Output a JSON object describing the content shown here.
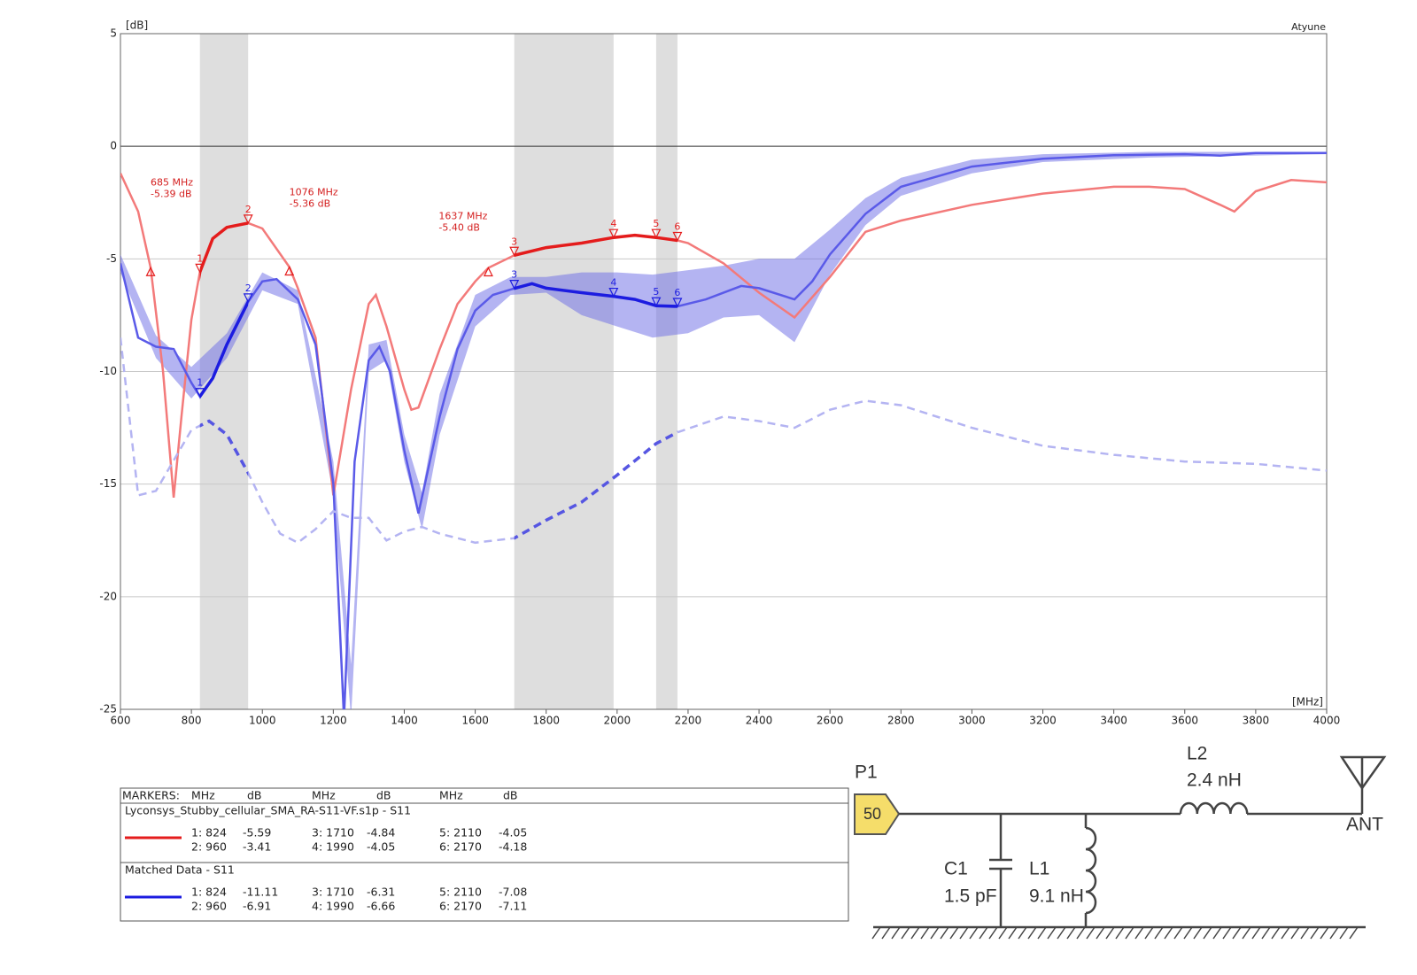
{
  "chart_data": {
    "type": "line",
    "y_unit": "[dB]",
    "x_unit": "[MHz]",
    "corner_label": "Atyune",
    "xlim": [
      600,
      4000
    ],
    "xticks": [
      600,
      800,
      1000,
      1200,
      1400,
      1600,
      1800,
      2000,
      2200,
      2400,
      2600,
      2800,
      3000,
      3200,
      3400,
      3600,
      3800,
      4000
    ],
    "ylim": [
      -25,
      5
    ],
    "yticks": [
      5,
      0,
      -5,
      -10,
      -15,
      -20,
      -25
    ],
    "grid": true,
    "shaded_bands": [
      [
        824,
        960
      ],
      [
        1710,
        1990
      ],
      [
        2110,
        2170
      ]
    ],
    "markers": {
      "labels": [
        "1",
        "2",
        "3",
        "4",
        "5",
        "6"
      ],
      "x": [
        824,
        960,
        1710,
        1990,
        2110,
        2170
      ]
    },
    "series": [
      {
        "color": "#f37a7a",
        "highlight_color": "#e41c1c",
        "dashed": false,
        "x": [
          600,
          650,
          685,
          720,
          750,
          772,
          800,
          824,
          860,
          900,
          960,
          1000,
          1076,
          1100,
          1150,
          1200,
          1250,
          1300,
          1320,
          1350,
          1400,
          1420,
          1440,
          1500,
          1550,
          1600,
          1637,
          1710,
          1800,
          1900,
          1990,
          2050,
          2110,
          2170,
          2200,
          2300,
          2400,
          2500,
          2600,
          2700,
          2800,
          3000,
          3200,
          3400,
          3500,
          3600,
          3700,
          3740,
          3800,
          3900,
          4000
        ],
        "values": [
          -1.2,
          -2.9,
          -5.39,
          -10,
          -15.6,
          -12,
          -7.7,
          -5.59,
          -4.1,
          -3.6,
          -3.41,
          -3.65,
          -5.36,
          -6.3,
          -8.5,
          -15.5,
          -10.8,
          -7,
          -6.6,
          -8,
          -10.8,
          -11.7,
          -11.6,
          -9,
          -7,
          -6,
          -5.4,
          -4.84,
          -4.5,
          -4.3,
          -4.05,
          -3.95,
          -4.05,
          -4.18,
          -4.3,
          -5.2,
          -6.5,
          -7.6,
          -5.8,
          -3.8,
          -3.3,
          -2.6,
          -2.1,
          -1.8,
          -1.8,
          -1.9,
          -2.6,
          -2.9,
          -2.0,
          -1.5,
          -1.6
        ],
        "marker_values": [
          -5.59,
          -3.41,
          -4.84,
          -4.05,
          -4.05,
          -4.18
        ]
      },
      {
        "color": "#5a5ae8",
        "highlight_color": "#1c1ce0",
        "dashed": false,
        "x": [
          600,
          650,
          700,
          750,
          800,
          824,
          860,
          900,
          960,
          1000,
          1040,
          1100,
          1150,
          1200,
          1230,
          1260,
          1300,
          1330,
          1360,
          1400,
          1440,
          1500,
          1550,
          1600,
          1650,
          1710,
          1760,
          1800,
          1900,
          1990,
          2050,
          2110,
          2170,
          2250,
          2350,
          2400,
          2500,
          2550,
          2600,
          2700,
          2800,
          3000,
          3200,
          3400,
          3600,
          3700,
          3800,
          4000
        ],
        "values": [
          -5.2,
          -8.5,
          -8.9,
          -9.0,
          -10.5,
          -11.11,
          -10.3,
          -8.8,
          -6.91,
          -6.0,
          -5.9,
          -6.8,
          -8.8,
          -15,
          -25.4,
          -14,
          -9.5,
          -8.9,
          -10,
          -13.5,
          -16.3,
          -12,
          -9,
          -7.3,
          -6.6,
          -6.31,
          -6.1,
          -6.3,
          -6.5,
          -6.66,
          -6.8,
          -7.08,
          -7.11,
          -6.8,
          -6.2,
          -6.3,
          -6.8,
          -6.0,
          -4.8,
          -3.0,
          -1.8,
          -0.9,
          -0.55,
          -0.4,
          -0.35,
          -0.42,
          -0.3,
          -0.3
        ],
        "marker_values": [
          -11.11,
          -6.91,
          -6.31,
          -6.66,
          -7.08,
          -7.11
        ],
        "band": {
          "color": "#6a6ae6",
          "x": [
            600,
            700,
            800,
            900,
            1000,
            1100,
            1200,
            1250,
            1300,
            1350,
            1400,
            1450,
            1500,
            1600,
            1700,
            1800,
            1900,
            2000,
            2100,
            2200,
            2300,
            2400,
            2500,
            2600,
            2700,
            2800,
            3000,
            3200,
            3500,
            4000
          ],
          "lower": [
            -5.6,
            -9.4,
            -11.2,
            -9.4,
            -6.4,
            -7.0,
            -15.5,
            -25.4,
            -10,
            -9.5,
            -14,
            -17,
            -12.8,
            -8,
            -6.6,
            -6.5,
            -7.5,
            -8.0,
            -8.5,
            -8.3,
            -7.6,
            -7.5,
            -8.7,
            -5.7,
            -3.5,
            -2.2,
            -1.2,
            -0.7,
            -0.5,
            -0.35
          ],
          "upper": [
            -4.8,
            -8.4,
            -9.8,
            -8.3,
            -5.6,
            -6.4,
            -14,
            -23,
            -8.8,
            -8.6,
            -12.8,
            -15.4,
            -11,
            -6.6,
            -5.8,
            -5.8,
            -5.6,
            -5.6,
            -5.7,
            -5.5,
            -5.3,
            -5.0,
            -5.0,
            -3.7,
            -2.3,
            -1.4,
            -0.6,
            -0.35,
            -0.25,
            -0.25
          ]
        }
      },
      {
        "color": "#b4b4f2",
        "highlight_color": "#5656e2",
        "dashed": true,
        "x": [
          600,
          650,
          700,
          800,
          850,
          900,
          960,
          1000,
          1050,
          1100,
          1150,
          1200,
          1250,
          1300,
          1350,
          1400,
          1450,
          1500,
          1600,
          1710,
          1800,
          1900,
          2000,
          2110,
          2170,
          2300,
          2400,
          2500,
          2600,
          2700,
          2800,
          3000,
          3200,
          3400,
          3600,
          3800,
          4000
        ],
        "values": [
          -8.5,
          -15.5,
          -15.3,
          -12.6,
          -12.2,
          -12.8,
          -14.5,
          -15.8,
          -17.2,
          -17.6,
          -17.0,
          -16.2,
          -16.5,
          -16.5,
          -17.5,
          -17.1,
          -16.9,
          -17.2,
          -17.6,
          -17.4,
          -16.6,
          -15.8,
          -14.6,
          -13.2,
          -12.7,
          -12.0,
          -12.2,
          -12.5,
          -11.7,
          -11.3,
          -11.5,
          -12.5,
          -13.3,
          -13.7,
          -14.0,
          -14.1,
          -14.4
        ]
      }
    ],
    "annotations": [
      {
        "x": 685,
        "y": -5.39,
        "lines": [
          "685 MHz",
          "-5.39 dB"
        ]
      },
      {
        "x": 1076,
        "y": -5.36,
        "lines": [
          "1076 MHz",
          "-5.36 dB"
        ]
      },
      {
        "x": 1637,
        "y": -5.4,
        "lines": [
          "1637 MHz",
          "-5.40 dB"
        ]
      }
    ]
  },
  "marker_table": {
    "header": [
      "MARKERS:",
      "MHz",
      "dB",
      "MHz",
      "dB",
      "MHz",
      "dB"
    ],
    "groups": [
      {
        "name": "Lyconsys_Stubby_cellular_SMA_RA-S11-VF.s1p - S11",
        "rows": [
          [
            "1: 824",
            -5.59,
            "3: 1710",
            -4.84,
            "5: 2110",
            -4.05
          ],
          [
            "2: 960",
            -3.41,
            "4: 1990",
            -4.05,
            "6: 2170",
            -4.18
          ]
        ]
      },
      {
        "name": "Matched Data - S11",
        "rows": [
          [
            "1: 824",
            -11.11,
            "3: 1710",
            -6.31,
            "5: 2110",
            -7.08
          ],
          [
            "2: 960",
            -6.91,
            "4: 1990",
            -6.66,
            "6: 2170",
            -7.11
          ]
        ]
      }
    ]
  },
  "circuit": {
    "port": "P1",
    "port_value": "50",
    "l2": {
      "name": "L2",
      "value": "2.4 nH"
    },
    "antenna": "ANT",
    "c1": {
      "name": "C1",
      "value": "1.5 pF"
    },
    "l1": {
      "name": "L1",
      "value": "9.1 nH"
    }
  }
}
